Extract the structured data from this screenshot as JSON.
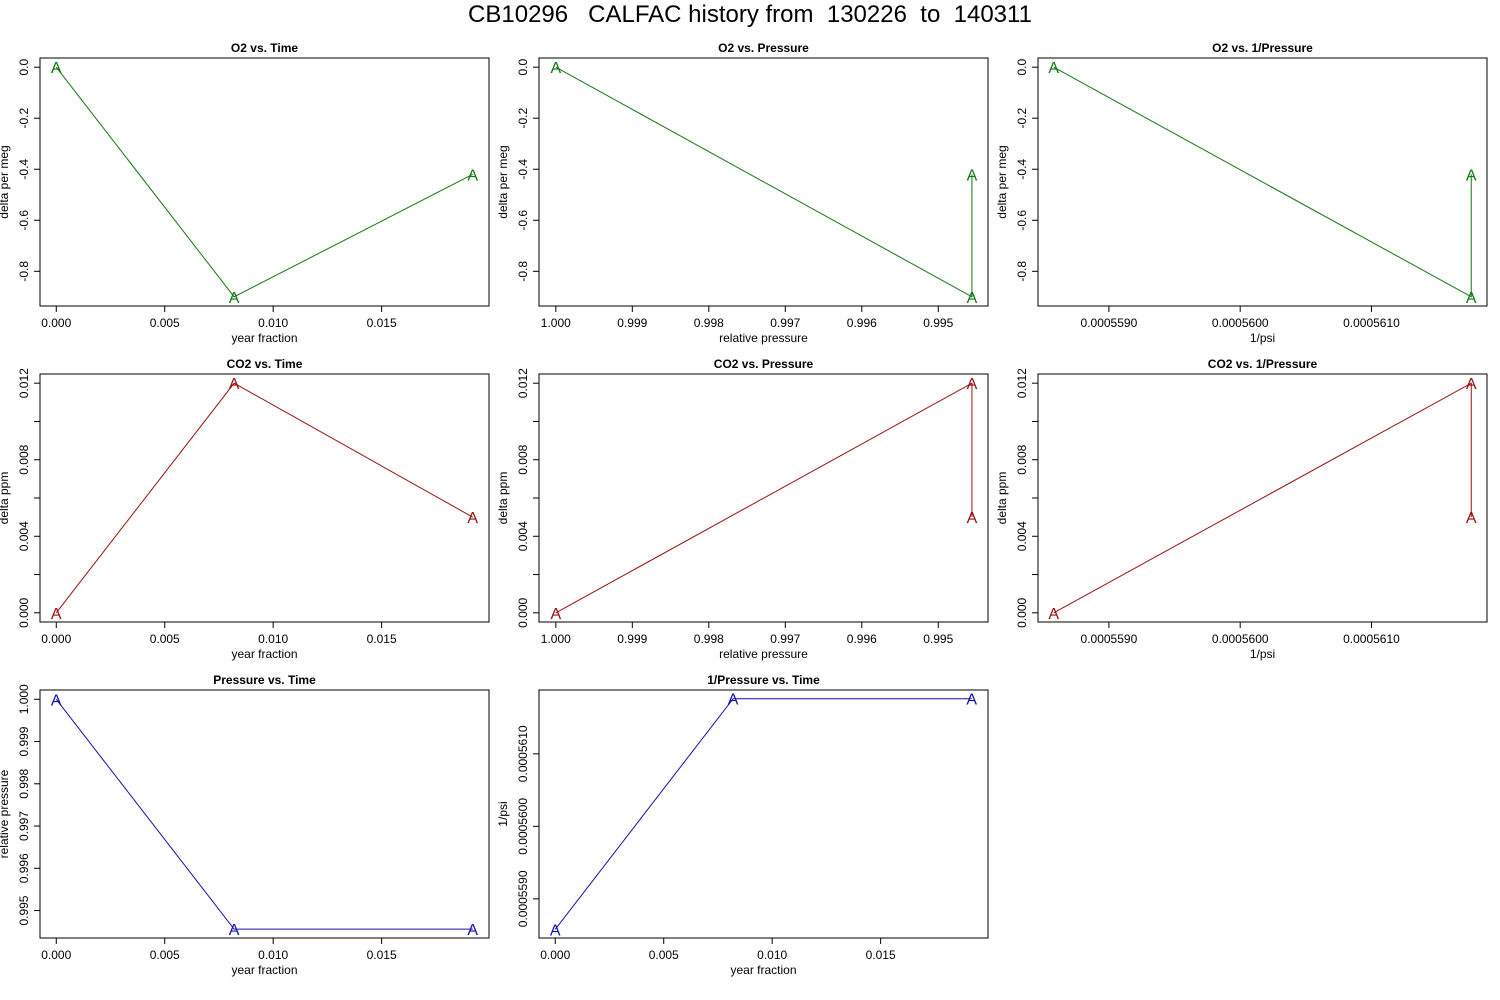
{
  "title": "CB10296   CALFAC history from  130226  to  140311",
  "marker": "A",
  "colors": {
    "o2": "#117711",
    "co2": "#991111",
    "pressure": "#1111aa"
  },
  "chart_data": [
    {
      "type": "line",
      "title": "O2 vs. Time",
      "xlabel": "year fraction",
      "ylabel": "delta per meg",
      "series_key": "o2",
      "x": [
        0.0,
        0.0082,
        0.0192
      ],
      "y": [
        0.0,
        -0.9,
        -0.42
      ],
      "xlim": [
        -0.00075,
        0.01995
      ],
      "ylim": [
        -0.936,
        0.036
      ],
      "xreverse": false,
      "xticks": [
        0.0,
        0.005,
        0.01,
        0.015
      ],
      "xticklabels": [
        "0.000",
        "0.005",
        "0.010",
        "0.015"
      ],
      "yticks": [
        0.0,
        -0.2,
        -0.4,
        -0.6,
        -0.8
      ],
      "yticklabels": [
        "0.0",
        "-0.2",
        "-0.4",
        "-0.6",
        "-0.8"
      ]
    },
    {
      "type": "line",
      "title": "O2 vs. Pressure",
      "xlabel": "relative pressure",
      "ylabel": "delta per meg",
      "series_key": "o2",
      "x": [
        1.0,
        0.99456,
        0.99456
      ],
      "y": [
        0.0,
        -0.9,
        -0.42
      ],
      "xlim": [
        0.99435,
        1.00022
      ],
      "ylim": [
        -0.936,
        0.036
      ],
      "xreverse": true,
      "xticks": [
        1.0,
        0.999,
        0.998,
        0.997,
        0.996,
        0.995
      ],
      "xticklabels": [
        "1.000",
        "0.999",
        "0.998",
        "0.997",
        "0.996",
        "0.995"
      ],
      "yticks": [
        0.0,
        -0.2,
        -0.4,
        -0.6,
        -0.8
      ],
      "yticklabels": [
        "0.0",
        "-0.2",
        "-0.4",
        "-0.6",
        "-0.8"
      ]
    },
    {
      "type": "line",
      "title": "O2 vs. 1/Pressure",
      "xlabel": "1/psi",
      "ylabel": "delta per meg",
      "series_key": "o2",
      "x": [
        0.00055858,
        0.00056176,
        0.00056176
      ],
      "y": [
        0.0,
        -0.9,
        -0.42
      ],
      "xlim": [
        0.00055846,
        0.00056188
      ],
      "ylim": [
        -0.936,
        0.036
      ],
      "xreverse": false,
      "xticks": [
        0.000558,
        0.000559,
        0.00056,
        0.000561,
        0.000562
      ],
      "xticklabels": [
        "",
        "0.0005590",
        "0.0005600",
        "0.0005610",
        ""
      ],
      "yticks": [
        0.0,
        -0.2,
        -0.4,
        -0.6,
        -0.8
      ],
      "yticklabels": [
        "0.0",
        "-0.2",
        "-0.4",
        "-0.6",
        "-0.8"
      ]
    },
    {
      "type": "line",
      "title": "CO2 vs. Time",
      "xlabel": "year fraction",
      "ylabel": "delta ppm",
      "series_key": "co2",
      "x": [
        0.0,
        0.0082,
        0.0192
      ],
      "y": [
        0.0,
        0.012,
        0.005
      ],
      "xlim": [
        -0.00075,
        0.01995
      ],
      "ylim": [
        -0.00048,
        0.01248
      ],
      "xreverse": false,
      "xticks": [
        0.0,
        0.005,
        0.01,
        0.015
      ],
      "xticklabels": [
        "0.000",
        "0.005",
        "0.010",
        "0.015"
      ],
      "yticks": [
        0.0,
        0.002,
        0.004,
        0.006,
        0.008,
        0.01,
        0.012
      ],
      "yticklabels": [
        "0.000",
        "",
        "0.004",
        "",
        "0.008",
        "",
        "0.012"
      ]
    },
    {
      "type": "line",
      "title": "CO2 vs. Pressure",
      "xlabel": "relative pressure",
      "ylabel": "delta ppm",
      "series_key": "co2",
      "x": [
        1.0,
        0.99456,
        0.99456
      ],
      "y": [
        0.0,
        0.012,
        0.005
      ],
      "xlim": [
        0.99435,
        1.00022
      ],
      "ylim": [
        -0.00048,
        0.01248
      ],
      "xreverse": true,
      "xticks": [
        1.0,
        0.999,
        0.998,
        0.997,
        0.996,
        0.995
      ],
      "xticklabels": [
        "1.000",
        "0.999",
        "0.998",
        "0.997",
        "0.996",
        "0.995"
      ],
      "yticks": [
        0.0,
        0.002,
        0.004,
        0.006,
        0.008,
        0.01,
        0.012
      ],
      "yticklabels": [
        "0.000",
        "",
        "0.004",
        "",
        "0.008",
        "",
        "0.012"
      ]
    },
    {
      "type": "line",
      "title": "CO2 vs. 1/Pressure",
      "xlabel": "1/psi",
      "ylabel": "delta ppm",
      "series_key": "co2",
      "x": [
        0.00055858,
        0.00056176,
        0.00056176
      ],
      "y": [
        0.0,
        0.012,
        0.005
      ],
      "xlim": [
        0.00055846,
        0.00056188
      ],
      "ylim": [
        -0.00048,
        0.01248
      ],
      "xreverse": false,
      "xticks": [
        0.000558,
        0.000559,
        0.00056,
        0.000561,
        0.000562
      ],
      "xticklabels": [
        "",
        "0.0005590",
        "0.0005600",
        "0.0005610",
        ""
      ],
      "yticks": [
        0.0,
        0.002,
        0.004,
        0.006,
        0.008,
        0.01,
        0.012
      ],
      "yticklabels": [
        "0.000",
        "",
        "0.004",
        "",
        "0.008",
        "",
        "0.012"
      ]
    },
    {
      "type": "line",
      "title": "Pressure vs. Time",
      "xlabel": "year fraction",
      "ylabel": "relative pressure",
      "series_key": "pressure",
      "x": [
        0.0,
        0.0082,
        0.0192
      ],
      "y": [
        1.0,
        0.99456,
        0.99456
      ],
      "xlim": [
        -0.00075,
        0.01995
      ],
      "ylim": [
        0.99435,
        1.00022
      ],
      "xreverse": false,
      "xticks": [
        0.0,
        0.005,
        0.01,
        0.015
      ],
      "xticklabels": [
        "0.000",
        "0.005",
        "0.010",
        "0.015"
      ],
      "yticks": [
        0.995,
        0.996,
        0.997,
        0.998,
        0.999,
        1.0
      ],
      "yticklabels": [
        "0.995",
        "0.996",
        "0.997",
        "0.998",
        "0.999",
        "1.000"
      ]
    },
    {
      "type": "line",
      "title": "1/Pressure vs. Time",
      "xlabel": "year fraction",
      "ylabel": "1/psi",
      "series_key": "pressure",
      "x": [
        0.0,
        0.0082,
        0.0192
      ],
      "y": [
        0.00055858,
        0.00056176,
        0.00056176
      ],
      "xlim": [
        -0.00075,
        0.01995
      ],
      "ylim": [
        0.00055846,
        0.00056188
      ],
      "xreverse": false,
      "xticks": [
        0.0,
        0.005,
        0.01,
        0.015
      ],
      "xticklabels": [
        "0.000",
        "0.005",
        "0.010",
        "0.015"
      ],
      "yticks": [
        0.000558,
        0.000559,
        0.00056,
        0.000561
      ],
      "yticklabels": [
        "",
        "0.0005590",
        "0.0005600",
        "0.0005610"
      ]
    }
  ]
}
